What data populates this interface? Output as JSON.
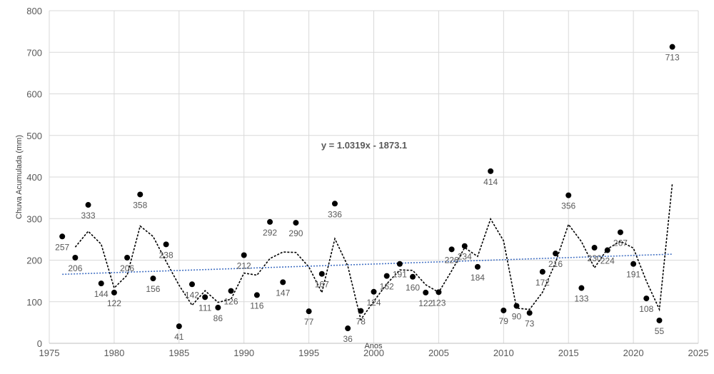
{
  "chart_data": {
    "type": "scatter",
    "xlabel": "Anos",
    "ylabel": "Chuva Acumulada (mm)",
    "xlim": [
      1975,
      2025
    ],
    "ylim": [
      0,
      800
    ],
    "x_ticks": [
      "1975",
      "1980",
      "1985",
      "1990",
      "1995",
      "2000",
      "2005",
      "2010",
      "2015",
      "2020",
      "2025"
    ],
    "y_ticks": [
      "0",
      "100",
      "200",
      "300",
      "400",
      "500",
      "600",
      "700",
      "800"
    ],
    "grid": true,
    "legend": "none",
    "colors": {
      "points": "#000000",
      "moving_average": "#000000",
      "trend": "#4472c4",
      "grid": "#d9d9d9"
    },
    "series": [
      {
        "x": [
          1976,
          1977,
          1978,
          1979,
          1980,
          1981,
          1982,
          1983,
          1984,
          1985,
          1986,
          1987,
          1988,
          1989,
          1990,
          1991,
          1992,
          1993,
          1994,
          1995,
          1996,
          1997,
          1998,
          1999,
          2000,
          2001,
          2002,
          2003,
          2004,
          2005,
          2006,
          2007,
          2008,
          2009,
          2010,
          2011,
          2012,
          2013,
          2014,
          2015,
          2016,
          2017,
          2018,
          2019,
          2020,
          2021,
          2022,
          2023
        ],
        "values": [
          257,
          206,
          333,
          144,
          122,
          206,
          358,
          156,
          238,
          41,
          142,
          111,
          86,
          126,
          212,
          116,
          292,
          147,
          290,
          77,
          167,
          336,
          36,
          78,
          124,
          162,
          191,
          160,
          122,
          123,
          226,
          234,
          184,
          414,
          79,
          90,
          73,
          172,
          216,
          356,
          133,
          230,
          224,
          267,
          191,
          108,
          55,
          713
        ],
        "labels": [
          "257",
          "206",
          "333",
          "144",
          "122",
          "206",
          "358",
          "156",
          "238",
          "41",
          "142",
          "111",
          "86",
          "126",
          "212",
          "116",
          "292",
          "147",
          "290",
          "77",
          "167",
          "336",
          "36",
          "78",
          "124",
          "162",
          "191",
          "160",
          "122",
          "123",
          "226",
          "234",
          "184",
          "414",
          "79",
          "90",
          "73",
          "172",
          "216",
          "356",
          "133",
          "230",
          "224",
          "267",
          "191",
          "108",
          "55",
          "713"
        ]
      }
    ],
    "moving_average": {
      "period": 2,
      "style": "dotted"
    },
    "trendline": {
      "type": "linear",
      "style": "dotted",
      "slope": 1.0319,
      "intercept": -1873.1,
      "equation": "y = 1.0319x - 1873.1"
    }
  }
}
